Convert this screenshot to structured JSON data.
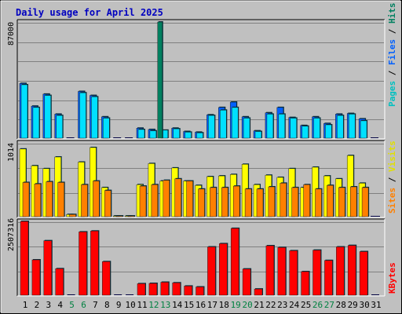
{
  "title": "Daily usage for April 2025",
  "colors": {
    "hits": "#00c0c0",
    "hits_face": "#00e0ff",
    "files": "#0060ff",
    "pages": "#008060",
    "visits": "#ffff00",
    "sites": "#ff8000",
    "kbytes": "#ff0000",
    "weekend_label": "#008040",
    "grid": "#808080",
    "panel": "#c0c0c0"
  },
  "panels": {
    "top": {
      "max_label": "87000",
      "side_label_1": "Pages",
      "side_label_2": "Files",
      "side_label_3": "Hits"
    },
    "middle": {
      "max_label": "1014",
      "side_label_1": "Sites",
      "side_label_2": "Visits"
    },
    "bottom": {
      "max_label": "2507316",
      "side_label_1": "KBytes"
    }
  },
  "chart_data": [
    {
      "type": "bar",
      "title": "Daily usage for April 2025",
      "categories": [
        "1",
        "2",
        "3",
        "4",
        "5",
        "6",
        "7",
        "8",
        "9",
        "10",
        "11",
        "12",
        "13",
        "14",
        "15",
        "16",
        "17",
        "18",
        "19",
        "20",
        "21",
        "22",
        "23",
        "24",
        "25",
        "26",
        "27",
        "28",
        "29",
        "30",
        "31"
      ],
      "weekend_days": [
        "5",
        "6",
        "12",
        "13",
        "19",
        "20",
        "26",
        "27"
      ],
      "ylim": [
        0,
        87000
      ],
      "ylabel": "87000",
      "series": [
        {
          "name": "Hits",
          "values": [
            40000,
            23000,
            32000,
            17000,
            0,
            34000,
            31000,
            15000,
            0,
            0,
            6500,
            5500,
            6000,
            7000,
            4500,
            4000,
            17000,
            21000,
            23000,
            15000,
            5000,
            18000,
            18000,
            15000,
            9000,
            15000,
            10000,
            17000,
            18000,
            13000,
            0
          ]
        },
        {
          "name": "Files",
          "values": [
            41000,
            24000,
            33000,
            18000,
            0,
            35000,
            32000,
            16000,
            0,
            0,
            7500,
            6500,
            0,
            7500,
            5000,
            4500,
            17500,
            23000,
            27000,
            16000,
            5500,
            19000,
            23000,
            15500,
            9500,
            16000,
            11000,
            18000,
            18500,
            14500,
            0
          ]
        },
        {
          "name": "Pages",
          "values": [
            0,
            0,
            0,
            0,
            0,
            0,
            0,
            0,
            0,
            0,
            0,
            0,
            87000,
            0,
            0,
            0,
            0,
            0,
            0,
            0,
            0,
            0,
            0,
            0,
            0,
            0,
            0,
            0,
            0,
            0,
            0
          ]
        }
      ]
    },
    {
      "type": "bar",
      "ylim": [
        0,
        1014
      ],
      "ylabel": "1014",
      "series": [
        {
          "name": "Visits",
          "values": [
            930,
            700,
            660,
            820,
            30,
            750,
            950,
            400,
            10,
            10,
            440,
            730,
            490,
            670,
            490,
            430,
            550,
            560,
            580,
            720,
            440,
            570,
            540,
            660,
            400,
            680,
            560,
            520,
            840,
            460,
            0
          ]
        },
        {
          "name": "Sites",
          "values": [
            470,
            450,
            480,
            470,
            30,
            440,
            490,
            360,
            10,
            10,
            420,
            440,
            500,
            520,
            490,
            380,
            400,
            400,
            420,
            380,
            380,
            410,
            460,
            400,
            440,
            380,
            430,
            400,
            410,
            400,
            0
          ]
        }
      ]
    },
    {
      "type": "bar",
      "ylim": [
        0,
        2507316
      ],
      "ylabel": "2507316",
      "series": [
        {
          "name": "KBytes",
          "values": [
            2507316,
            1200000,
            1850000,
            900000,
            0,
            2150000,
            2180000,
            1140000,
            0,
            0,
            390000,
            400000,
            440000,
            420000,
            310000,
            280000,
            1640000,
            1750000,
            2270000,
            890000,
            210000,
            1680000,
            1620000,
            1510000,
            800000,
            1530000,
            1180000,
            1640000,
            1690000,
            1480000,
            0
          ]
        }
      ]
    }
  ]
}
